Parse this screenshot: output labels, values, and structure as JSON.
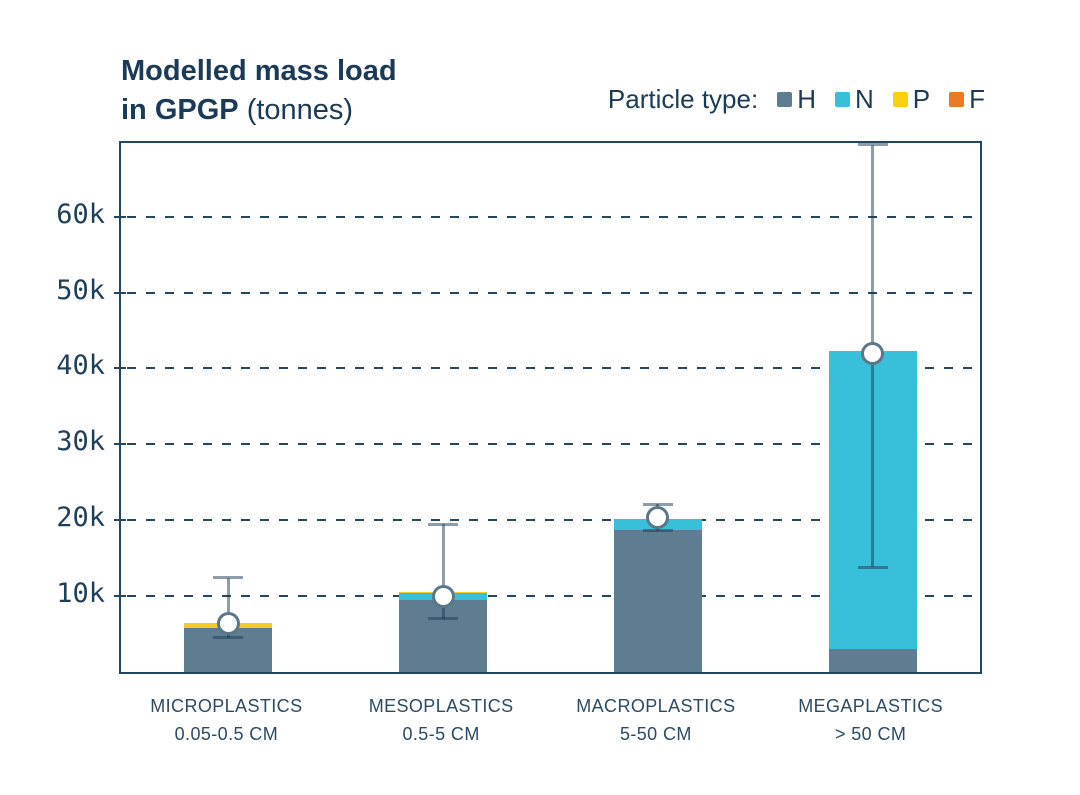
{
  "title": {
    "line1": "Modelled mass load",
    "line2_bold": "in GPGP",
    "line2_regular": " (tonnes)"
  },
  "legend": {
    "label": "Particle type:",
    "items": [
      {
        "code": "H",
        "color": "#5e7d91"
      },
      {
        "code": "N",
        "color": "#38bfd9"
      },
      {
        "code": "P",
        "color": "#fdd00e"
      },
      {
        "code": "F",
        "color": "#e97b22"
      }
    ]
  },
  "chart_data": {
    "type": "bar",
    "stacked": true,
    "title": "Modelled mass load in GPGP (tonnes)",
    "unit": "tonnes",
    "grid": "dashed-horizontal",
    "legend_position": "top-right",
    "categories": [
      {
        "label": "MICROPLASTICS",
        "size_range": "0.05-0.5 CM"
      },
      {
        "label": "MESOPLASTICS",
        "size_range": "0.5-5 CM"
      },
      {
        "label": "MACROPLASTICS",
        "size_range": "5-50 CM"
      },
      {
        "label": "MEGAPLASTICS",
        "size_range": "> 50 CM"
      }
    ],
    "series": [
      {
        "name": "H",
        "color": "#5e7d91",
        "values": [
          5800,
          9500,
          18700,
          3000
        ]
      },
      {
        "name": "N",
        "color": "#38bfd9",
        "values": [
          0,
          850,
          1450,
          39300
        ]
      },
      {
        "name": "P",
        "color": "#f5cb25",
        "values": [
          650,
          200,
          0,
          0
        ]
      },
      {
        "name": "F",
        "color": "#e97b22",
        "values": [
          0,
          0,
          0,
          0
        ]
      }
    ],
    "stack_totals": [
      6450,
      10550,
      20150,
      42300
    ],
    "error_bars": [
      {
        "mid": 6400,
        "low": 4500,
        "high": 12400
      },
      {
        "mid": 10000,
        "low": 7000,
        "high": 19500
      },
      {
        "mid": 20400,
        "low": 18600,
        "high": 22100
      },
      {
        "mid": 42000,
        "low": 13800,
        "high": 69500
      }
    ],
    "y_axis": {
      "min": 0,
      "max": 69700,
      "ticks": [
        {
          "value": 10000,
          "label": "10k"
        },
        {
          "value": 20000,
          "label": "20k"
        },
        {
          "value": 30000,
          "label": "30k"
        },
        {
          "value": 40000,
          "label": "40k"
        },
        {
          "value": 50000,
          "label": "50k"
        },
        {
          "value": 60000,
          "label": "60k"
        }
      ]
    },
    "colors": {
      "axis": "#25465f",
      "text": "#1b3a57",
      "error_bar": "rgba(27,59,84,0.5)",
      "marker_stroke": "#5b7689",
      "marker_fill": "#ffffff"
    }
  }
}
